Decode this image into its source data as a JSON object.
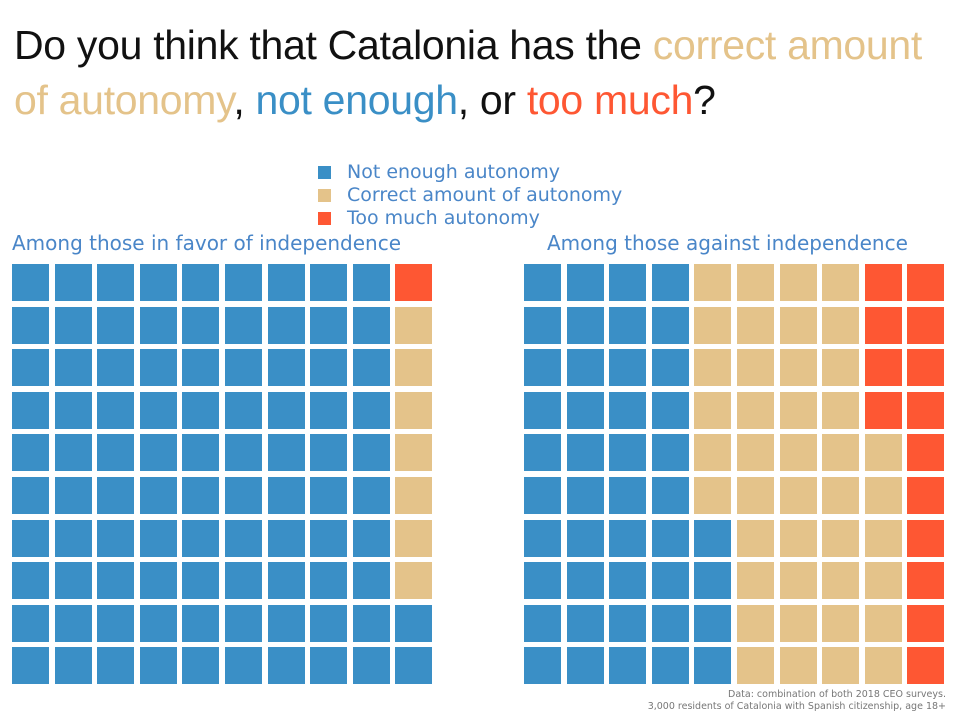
{
  "title": {
    "part1": "Do you think that Catalonia has the ",
    "correct": "correct amount of autonomy",
    "sep1": ", ",
    "not_enough": "not enough",
    "sep2": ", or ",
    "too_much": "too much",
    "end": "?"
  },
  "colors": {
    "not_enough": "#3a8fc6",
    "correct": "#e4c38a",
    "too_much": "#fe5733"
  },
  "chart_data": [
    {
      "type": "waffle",
      "title": "Among those in favor of independence",
      "grid": [
        10,
        10
      ],
      "fill_order": "column-major, bottom-to-top, left-to-right",
      "categories": [
        "Not enough autonomy",
        "Correct amount of autonomy",
        "Too much autonomy"
      ],
      "values": [
        92,
        7,
        1
      ]
    },
    {
      "type": "waffle",
      "title": "Among those against independence",
      "grid": [
        10,
        10
      ],
      "fill_order": "column-major, bottom-to-top, left-to-right",
      "categories": [
        "Not enough autonomy",
        "Correct amount of autonomy",
        "Too much autonomy"
      ],
      "values": [
        44,
        42,
        14
      ]
    }
  ],
  "legend": [
    "Not enough autonomy",
    "Correct amount of autonomy",
    "Too much autonomy"
  ],
  "source": {
    "line1": "Data: combination of both 2018 CEO surveys.",
    "line2": "3,000 residents of Catalonia with Spanish citizenship, age 18+"
  }
}
